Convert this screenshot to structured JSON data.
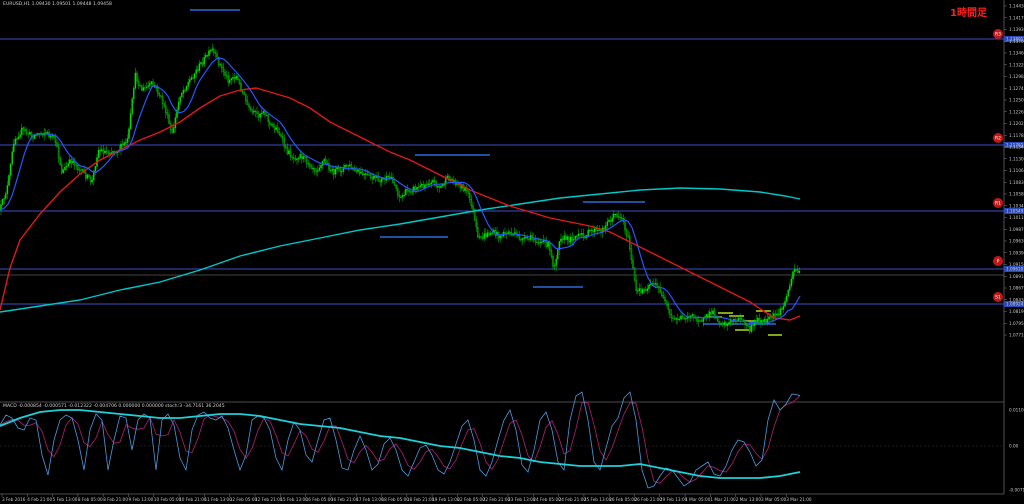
{
  "colors": {
    "background": "#000000",
    "candle": "#00e000",
    "ma_fast": "#2458ff",
    "ma_mid": "#e01818",
    "ma_slow": "#00c8c8",
    "hline": "#3a50c8",
    "level_line": "#2a6ad8",
    "badge": "#ff2020"
  },
  "main_chart": {
    "header": "EURUSD,H1  1.09430 1.09501 1.09448 1.09458",
    "timeframe_badge": "1時間足",
    "price_labels": [
      "1.14430",
      "1.14170",
      "1.13930",
      "1.13700",
      "1.13460",
      "1.13220",
      "1.12985",
      "1.12745",
      "1.12505",
      "1.12265",
      "1.12025",
      "1.11785",
      "1.11545",
      "1.11305",
      "1.11065",
      "1.10830",
      "1.10580",
      "1.10340",
      "1.10110",
      "1.09870",
      "1.09630",
      "1.09390",
      "1.09150",
      "1.08910",
      "1.08670",
      "1.08430",
      "1.08190",
      "1.07950",
      "1.07710"
    ],
    "level_markers": [
      "R3",
      "R2",
      "R1",
      "P",
      "S1"
    ],
    "price_tags": [
      "1.13801",
      "1.11761",
      "1.10549",
      "1.09610",
      "1.08924"
    ]
  },
  "indicator": {
    "header": "MACD -0.000854 -0.000571 -0.012322 -0.004706 0.000000 0.000000  stoch:3 -34.7161 36.2045",
    "price_labels": [
      "0.011000",
      "0.00",
      "-0.007130"
    ]
  },
  "time_axis": {
    "labels": [
      "3 Feb 2016",
      "4 Feb 21:00",
      "5 Feb 13:00",
      "8 Feb 05:00",
      "8 Feb 21:00",
      "9 Feb 13:00",
      "10 Feb 05:00",
      "10 Feb 21:00",
      "11 Feb 13:00",
      "12 Feb 05:00",
      "12 Feb 21:00",
      "15 Feb 13:00",
      "16 Feb 05:00",
      "16 Feb 21:00",
      "17 Feb 13:00",
      "18 Feb 05:00",
      "18 Feb 21:00",
      "19 Feb 13:00",
      "22 Feb 05:00",
      "22 Feb 21:00",
      "23 Feb 13:00",
      "24 Feb 05:00",
      "24 Feb 21:00",
      "25 Feb 13:00",
      "26 Feb 05:00",
      "26 Feb 21:00",
      "29 Feb 13:00",
      "1 Mar 05:00",
      "1 Mar 21:00",
      "2 Mar 13:00",
      "3 Mar 05:00",
      "3 Mar 21:00"
    ]
  }
}
